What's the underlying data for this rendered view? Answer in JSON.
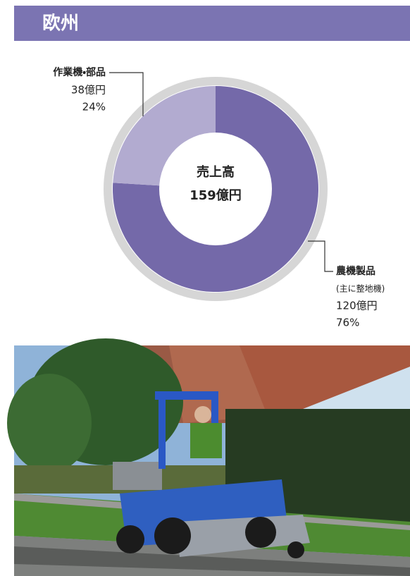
{
  "header": {
    "title": "欧州"
  },
  "chart_data": {
    "type": "donut",
    "center_title": "売上高",
    "total": 159,
    "total_label": "159億円",
    "categories": [
      "作業機・部品",
      "農機製品"
    ],
    "annotation": "(主に整地機)",
    "values": [
      38,
      120
    ],
    "value_labels": [
      "38億円",
      "120億円"
    ],
    "percents": [
      24,
      76
    ],
    "percent_labels": [
      "24%",
      "76%"
    ],
    "colors": [
      "#b2abd0",
      "#7469a9"
    ]
  }
}
